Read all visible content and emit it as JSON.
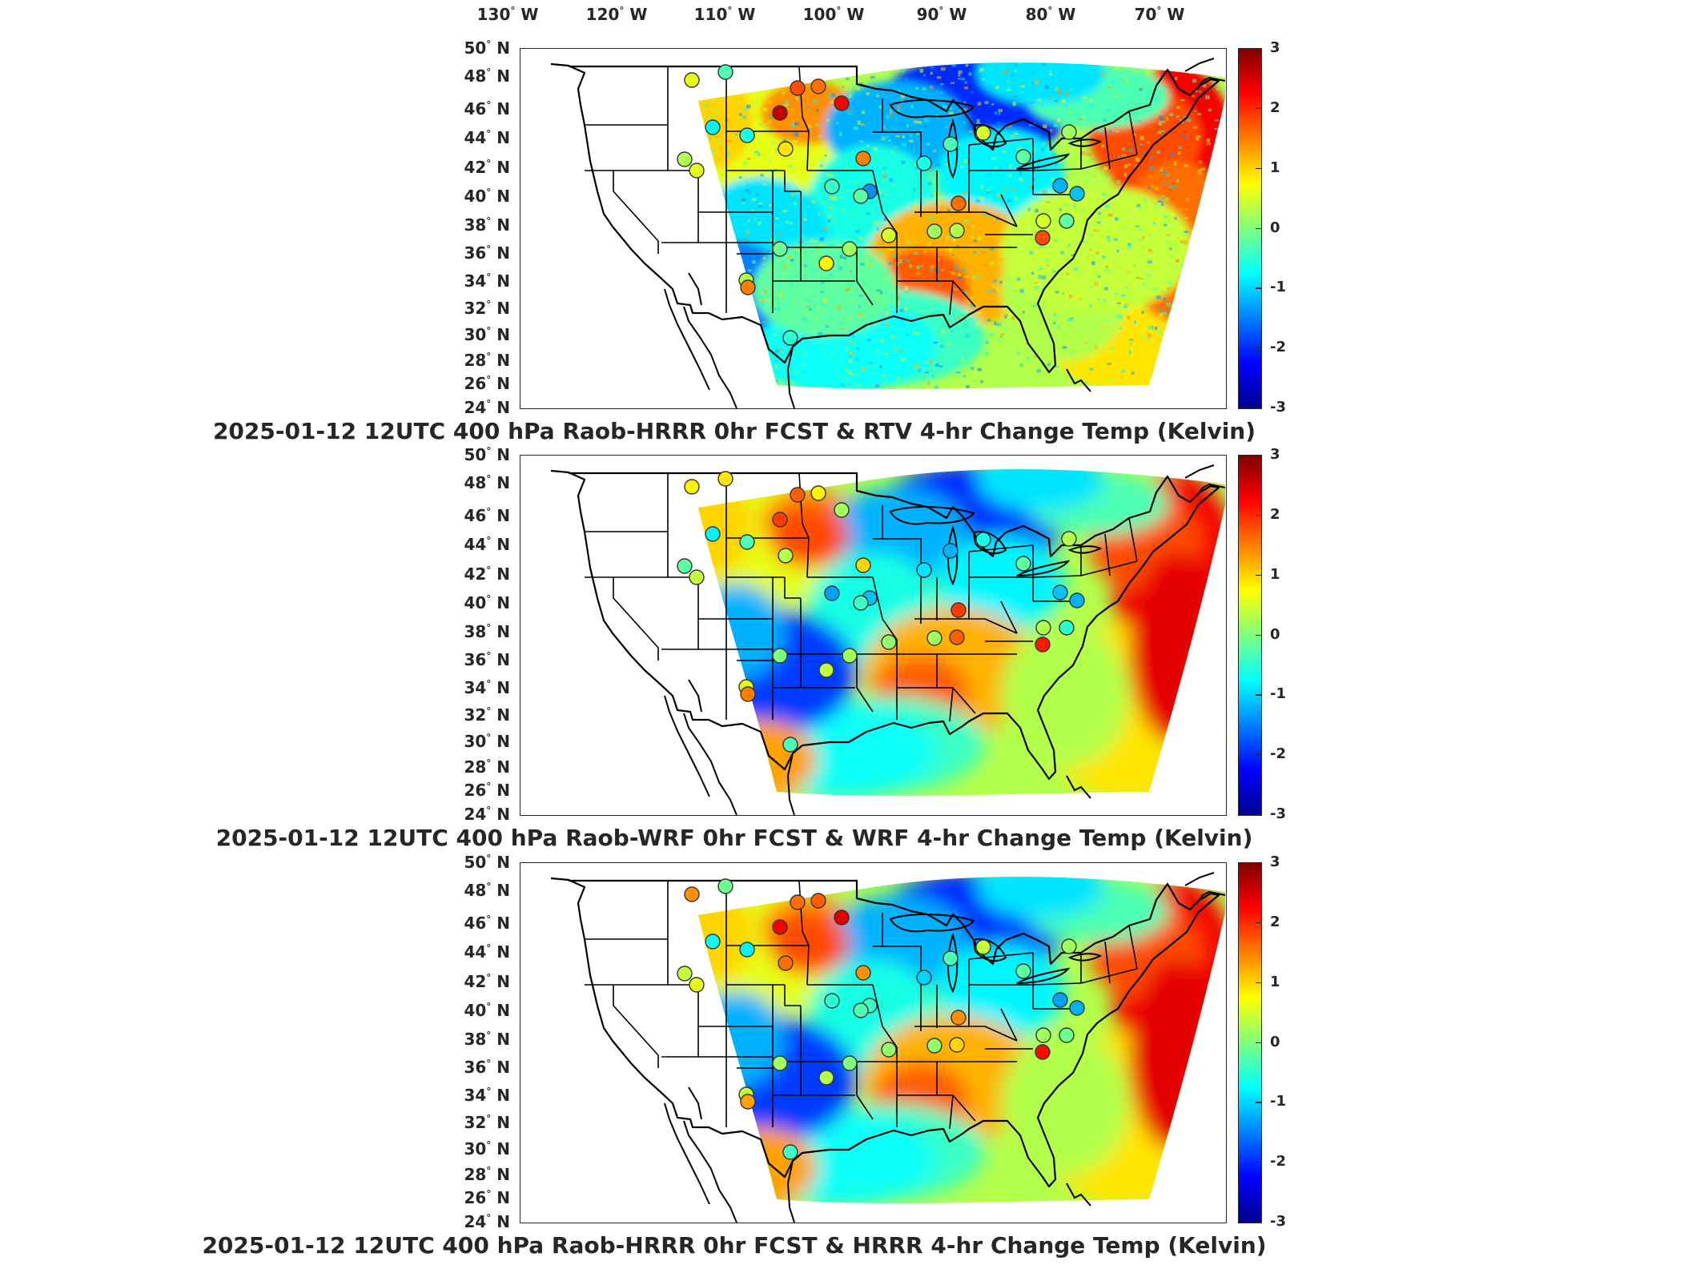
{
  "lon_axis": [
    {
      "deg": "130",
      "hemi": "W"
    },
    {
      "deg": "120",
      "hemi": "W"
    },
    {
      "deg": "110",
      "hemi": "W"
    },
    {
      "deg": "100",
      "hemi": "W"
    },
    {
      "deg": "90",
      "hemi": "W"
    },
    {
      "deg": "80",
      "hemi": "W"
    },
    {
      "deg": "70",
      "hemi": "W"
    }
  ],
  "lat_axis": [
    {
      "deg": "50",
      "hemi": "N"
    },
    {
      "deg": "48",
      "hemi": "N"
    },
    {
      "deg": "46",
      "hemi": "N"
    },
    {
      "deg": "44",
      "hemi": "N"
    },
    {
      "deg": "42",
      "hemi": "N"
    },
    {
      "deg": "40",
      "hemi": "N"
    },
    {
      "deg": "38",
      "hemi": "N"
    },
    {
      "deg": "36",
      "hemi": "N"
    },
    {
      "deg": "34",
      "hemi": "N"
    },
    {
      "deg": "32",
      "hemi": "N"
    },
    {
      "deg": "30",
      "hemi": "N"
    },
    {
      "deg": "28",
      "hemi": "N"
    },
    {
      "deg": "26",
      "hemi": "N"
    },
    {
      "deg": "24",
      "hemi": "N"
    }
  ],
  "colorbar": {
    "ticks": [
      "3",
      "2",
      "1",
      "0",
      "-1",
      "-2",
      "-3"
    ],
    "range": [
      -3,
      3
    ],
    "colors": [
      "#00008f",
      "#0000ff",
      "#007fff",
      "#00ffff",
      "#7fff7f",
      "#ffff00",
      "#ff7f00",
      "#ff0000",
      "#7f0000"
    ]
  },
  "panels": [
    {
      "title": "2025-01-12 12UTC 400 hPa Raob-HRRR 0hr FCST & RTV 4-hr Change Temp (Kelvin)",
      "field_style": "speckled",
      "raob_values": [
        0.6,
        -0.3,
        1.8,
        1.6,
        2.3,
        2.6,
        -0.6,
        -0.8,
        0.6,
        0.3,
        0.9,
        1.5,
        -0.4,
        -1.4,
        -0.6,
        -0.3,
        0.5,
        -0.2,
        0.2,
        -1.2,
        -1.1,
        -0.2,
        0.5,
        1.8,
        1.6,
        0.3,
        0.2,
        0.5,
        0.2,
        -0.1,
        0.3,
        1.5,
        -0.5,
        -0.2,
        0.8
      ]
    },
    {
      "title": "2025-01-12 12UTC 400 hPa Raob-WRF 0hr FCST & WRF 4-hr Change Temp (Kelvin)",
      "field_style": "smooth",
      "raob_values": [
        0.8,
        0.9,
        1.7,
        0.8,
        0.2,
        1.9,
        -0.3,
        -0.8,
        0.4,
        -0.2,
        0.3,
        1.0,
        -1.3,
        -1.1,
        -0.9,
        -1.2,
        -0.6,
        -0.2,
        0.3,
        -1.1,
        -1.2,
        -0.5,
        0.3,
        2.1,
        1.9,
        1.7,
        0.2,
        0.1,
        0.2,
        0.0,
        0.6,
        1.5,
        -0.3,
        -0.4,
        0.4
      ]
    },
    {
      "title": "2025-01-12 12UTC 400 hPa Raob-HRRR 0hr FCST & HRRR 4-hr Change Temp (Kelvin)",
      "field_style": "smooth",
      "raob_values": [
        1.4,
        -0.1,
        1.6,
        1.7,
        2.4,
        2.3,
        -0.8,
        -0.7,
        0.6,
        0.4,
        1.6,
        1.4,
        -0.5,
        -0.4,
        -1.0,
        -0.3,
        0.4,
        -0.2,
        0.2,
        -1.3,
        -1.2,
        -0.1,
        0.2,
        2.2,
        1.4,
        1.0,
        0.1,
        0.1,
        0.0,
        0.2,
        0.4,
        1.3,
        -0.4,
        -0.3,
        0.3
      ]
    }
  ]
}
